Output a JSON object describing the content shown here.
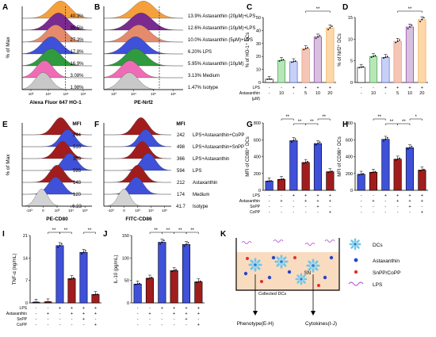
{
  "panel_letters": [
    "A",
    "B",
    "C",
    "D",
    "E",
    "F",
    "G",
    "H",
    "I",
    "J",
    "K"
  ],
  "colors": {
    "orange": "#f5a03c",
    "purple": "#7b2a8f",
    "peach": "#e58b6b",
    "blue": "#3f51d9",
    "green": "#2f9a3e",
    "pink": "#f06bb5",
    "gray": "#c8c8c8",
    "darkred": "#a11d1d",
    "lightgray": "#d3d3d3"
  },
  "histA": {
    "ylabel": "% of Max",
    "xlabel": "Alexa Fluor 647 HO-1",
    "values": [
      "40.3%",
      "35.5%",
      "27.3%",
      "17.8%",
      "16.9%",
      "3.08%",
      "1.98%"
    ],
    "ticks": [
      "10³",
      "10⁴",
      "10⁵",
      "10⁶"
    ]
  },
  "histB": {
    "xlabel": "PE-Nrf2",
    "ticks": [
      "10³",
      "10⁴",
      "10⁵",
      "10⁶"
    ],
    "legend": [
      "13.9% Astaxanthin (20μM)+LPS",
      "12.6% Astaxanthin (10μM)+LPS",
      "10.0% Astaxanthin (5μM)+LPS",
      "6.20% LPS",
      "5.95% Astaxanthin (10μM)",
      "3.13% Medium",
      "1.47% Isotype"
    ]
  },
  "histE": {
    "ylabel": "% of Max",
    "xlabel": "PE-CD80",
    "mfi_label": "MFI",
    "values": [
      "244",
      "510",
      "333",
      "593",
      "148",
      "120",
      "6.23"
    ],
    "ticks": [
      "-10³",
      "0",
      "10³",
      "10⁴",
      "10⁵"
    ]
  },
  "histF": {
    "xlabel": "FITC-CD86",
    "mfi_label": "MFI",
    "values": [
      "242",
      "498",
      "366",
      "594",
      "212",
      "174",
      "41.7"
    ],
    "ticks": [
      "-10³",
      "0",
      "10³",
      "10⁴",
      "10⁵"
    ],
    "legend": [
      "LPS+Astaxanthin+CoPP",
      "LPS+Astaxanthin+SnPP",
      "LPS+Astaxanthin",
      "LPS",
      "Astaxanthin",
      "Medium",
      "Isotype"
    ]
  },
  "chart_data": [
    {
      "panel": "C",
      "type": "bar",
      "ylabel": "% of HO-1⁺ DCs",
      "ylim": [
        0,
        50
      ],
      "yticks": [
        "0",
        "10",
        "20",
        "30",
        "40",
        "50"
      ],
      "values": [
        2.5,
        17,
        16,
        26,
        35,
        42
      ],
      "treatment_rows": [
        {
          "label": "LPS",
          "cells": [
            "-",
            "-",
            "+",
            "+",
            "+",
            "+"
          ]
        },
        {
          "label": "Astaxanthin",
          "cells": [
            "-",
            "10",
            "-",
            "5",
            "10",
            "20"
          ]
        },
        {
          "label": "(μM)",
          "cells": [
            "",
            "",
            "",
            "",
            "",
            ""
          ]
        }
      ],
      "significance": [
        "**"
      ]
    },
    {
      "panel": "D",
      "type": "bar",
      "ylabel": "% of Nrf2⁺ DCs",
      "ylim": [
        0,
        15
      ],
      "yticks": [
        "0",
        "5",
        "10",
        "15"
      ],
      "values": [
        3.5,
        6,
        5.8,
        9.5,
        12.8,
        14.5
      ],
      "treatment_rows": [
        {
          "label": "",
          "cells": [
            "-",
            "-",
            "+",
            "+",
            "+",
            "+"
          ]
        },
        {
          "label": "",
          "cells": [
            "-",
            "10",
            "-",
            "5",
            "10",
            "20"
          ]
        }
      ],
      "significance": [
        "**"
      ]
    },
    {
      "panel": "G",
      "type": "bar",
      "ylabel": "MFI of CD80⁺ DCs",
      "ylim": [
        0,
        800
      ],
      "yticks": [
        "0",
        "200",
        "400",
        "600",
        "800"
      ],
      "values": [
        110,
        130,
        590,
        330,
        555,
        220
      ],
      "treatment_rows": [
        {
          "label": "LPS",
          "cells": [
            "-",
            "-",
            "+",
            "+",
            "+",
            "+"
          ]
        },
        {
          "label": "Astaxanthin",
          "cells": [
            "-",
            "+",
            "-",
            "+",
            "+",
            "+"
          ]
        },
        {
          "label": "SnPP",
          "cells": [
            "-",
            "-",
            "-",
            "-",
            "+",
            "-"
          ]
        },
        {
          "label": "CoPP",
          "cells": [
            "-",
            "-",
            "-",
            "-",
            "-",
            "+"
          ]
        }
      ],
      "significance": [
        "**",
        "**",
        "**",
        "**"
      ]
    },
    {
      "panel": "H",
      "type": "bar",
      "ylabel": "MFI of CD86⁺ DCs",
      "ylim": [
        0,
        800
      ],
      "yticks": [
        "0",
        "200",
        "400",
        "600",
        "800"
      ],
      "values": [
        190,
        215,
        605,
        370,
        505,
        240
      ],
      "treatment_rows": [
        {
          "label": "",
          "cells": [
            "-",
            "-",
            "+",
            "+",
            "+",
            "+"
          ]
        },
        {
          "label": "",
          "cells": [
            "-",
            "+",
            "-",
            "+",
            "+",
            "+"
          ]
        },
        {
          "label": "",
          "cells": [
            "-",
            "-",
            "-",
            "-",
            "+",
            "-"
          ]
        },
        {
          "label": "",
          "cells": [
            "-",
            "-",
            "-",
            "-",
            "-",
            "+"
          ]
        }
      ],
      "significance": [
        "**",
        "**",
        "**",
        "*"
      ]
    },
    {
      "panel": "I",
      "type": "bar",
      "ylabel": "TNF-α (ng/mL)",
      "ylim": [
        0,
        20
      ],
      "yticks": [
        "0",
        "7",
        "14",
        "21"
      ],
      "values": [
        0.2,
        0.3,
        17,
        7.2,
        15,
        2.5
      ],
      "treatment_rows": [
        {
          "label": "LPS",
          "cells": [
            "-",
            "-",
            "+",
            "+",
            "+",
            "+"
          ]
        },
        {
          "label": "Astaxanthin",
          "cells": [
            "-",
            "+",
            "-",
            "+",
            "+",
            "+"
          ]
        },
        {
          "label": "SnPP",
          "cells": [
            "-",
            "-",
            "-",
            "-",
            "+",
            "-"
          ]
        },
        {
          "label": "CoPP",
          "cells": [
            "-",
            "-",
            "-",
            "-",
            "-",
            "+"
          ]
        }
      ],
      "significance": [
        "**",
        "**",
        "**"
      ]
    },
    {
      "panel": "J",
      "type": "bar",
      "ylabel": "IL-10 (pg/mL)",
      "ylim": [
        0,
        150
      ],
      "yticks": [
        "0",
        "50",
        "100",
        "150"
      ],
      "values": [
        42,
        55,
        135,
        72,
        130,
        47
      ],
      "treatment_rows": [
        {
          "label": "",
          "cells": [
            "-",
            "-",
            "+",
            "+",
            "+",
            "+"
          ]
        },
        {
          "label": "",
          "cells": [
            "-",
            "+",
            "-",
            "+",
            "+",
            "+"
          ]
        },
        {
          "label": "",
          "cells": [
            "-",
            "-",
            "-",
            "-",
            "+",
            "-"
          ]
        },
        {
          "label": "",
          "cells": [
            "-",
            "-",
            "-",
            "-",
            "-",
            "+"
          ]
        }
      ],
      "significance": [
        "**",
        "**",
        "**",
        "**"
      ]
    }
  ],
  "panelK": {
    "collected": "Collected DCs",
    "sn": "SN",
    "phenotype": "Phenotype(E-H)",
    "cytokines": "Cytokines(I-J)",
    "legend": [
      "DCs",
      "Astaxanthin",
      "SnPP/CoPP",
      "LPS"
    ]
  }
}
